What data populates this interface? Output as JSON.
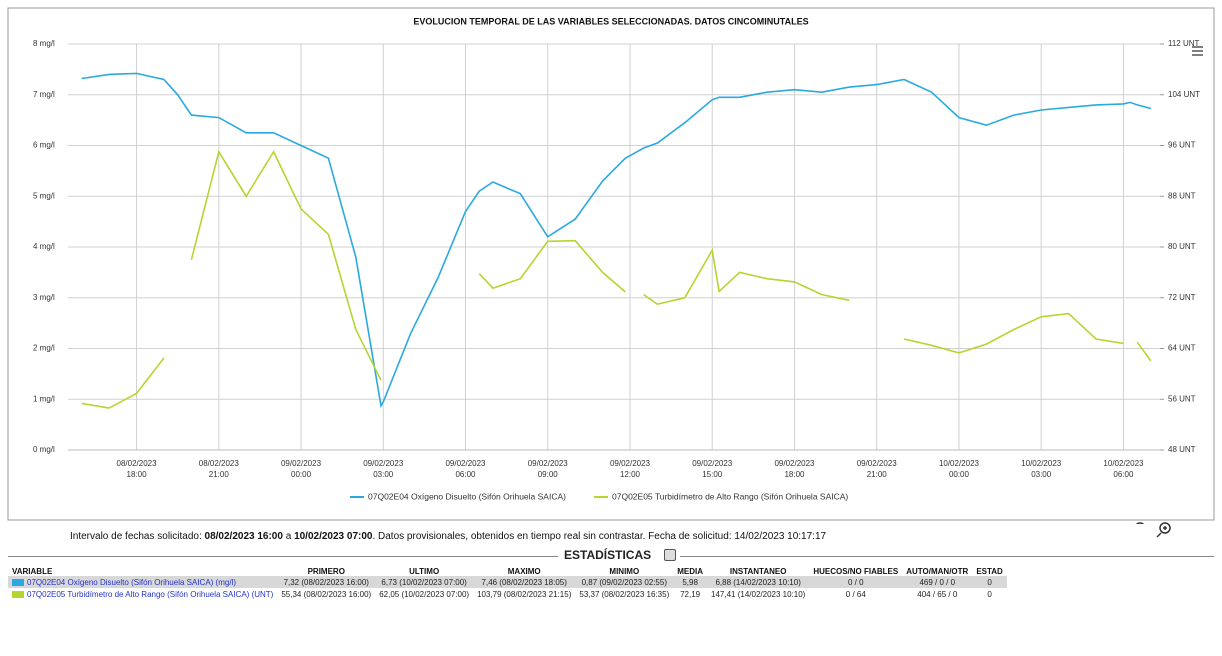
{
  "chart_data": {
    "type": "line",
    "title": "EVOLUCION TEMPORAL DE LAS VARIABLES SELECCIONADAS. DATOS CINCOMINUTALES",
    "x": [
      "08/02/2023 16:00",
      "08/02/2023 17:00",
      "08/02/2023 18:00",
      "08/02/2023 19:00",
      "08/02/2023 19:30",
      "08/02/2023 20:00",
      "08/02/2023 21:00",
      "08/02/2023 22:00",
      "08/02/2023 23:00",
      "09/02/2023 00:00",
      "09/02/2023 01:00",
      "09/02/2023 02:00",
      "09/02/2023 02:55",
      "09/02/2023 03:00",
      "09/02/2023 04:00",
      "09/02/2023 05:00",
      "09/02/2023 06:00",
      "09/02/2023 06:30",
      "09/02/2023 07:00",
      "09/02/2023 08:00",
      "09/02/2023 09:00",
      "09/02/2023 10:00",
      "09/02/2023 11:00",
      "09/02/2023 11:50",
      "09/02/2023 12:00",
      "09/02/2023 12:30",
      "09/02/2023 13:00",
      "09/02/2023 14:00",
      "09/02/2023 15:00",
      "09/02/2023 15:15",
      "09/02/2023 16:00",
      "09/02/2023 17:00",
      "09/02/2023 18:00",
      "09/02/2023 19:00",
      "09/02/2023 20:00",
      "09/02/2023 21:00",
      "09/02/2023 22:00",
      "09/02/2023 23:00",
      "10/02/2023 00:00",
      "10/02/2023 01:00",
      "10/02/2023 02:00",
      "10/02/2023 03:00",
      "10/02/2023 04:00",
      "10/02/2023 05:00",
      "10/02/2023 06:00",
      "10/02/2023 06:15",
      "10/02/2023 06:30",
      "10/02/2023 07:00"
    ],
    "series": [
      {
        "name": "07Q02E04 Oxígeno Disuelto (Sifón Orihuela SAICA)",
        "color": "#2aa9e0",
        "values": [
          7.32,
          7.4,
          7.42,
          7.3,
          7.0,
          6.6,
          6.55,
          6.25,
          6.25,
          6.0,
          5.75,
          3.8,
          0.87,
          0.95,
          2.3,
          3.4,
          4.7,
          5.1,
          5.28,
          5.05,
          4.2,
          4.55,
          5.3,
          5.75,
          5.8,
          5.95,
          6.05,
          6.45,
          6.9,
          6.95,
          6.95,
          7.05,
          7.1,
          7.05,
          7.15,
          7.2,
          7.3,
          7.05,
          6.55,
          6.4,
          6.6,
          6.7,
          6.75,
          6.8,
          6.82,
          6.85,
          6.8,
          6.73
        ]
      },
      {
        "name": "07Q02E05 Turbidímetro de Alto Rango (Sifón Orihuela SAICA)",
        "color": "#b5d52f",
        "axis": "y2",
        "values": [
          55.34,
          54.6,
          56.9,
          62.5,
          null,
          78,
          95,
          88,
          95,
          86,
          82,
          67,
          59,
          null,
          null,
          null,
          null,
          75.8,
          73.5,
          75,
          80.9,
          81,
          76,
          72.9,
          null,
          72.5,
          71,
          72,
          79.5,
          73,
          76,
          75,
          74.5,
          72.5,
          71.6,
          null,
          65.5,
          64.5,
          63.3,
          64.7,
          67,
          69,
          69.5,
          65.5,
          64.8,
          null,
          65,
          62.05
        ]
      }
    ],
    "xlim": [
      "08/02/2023 15:30",
      "10/02/2023 07:20"
    ],
    "xticks": [
      "08/02/2023 18:00",
      "08/02/2023 21:00",
      "09/02/2023 00:00",
      "09/02/2023 03:00",
      "09/02/2023 06:00",
      "09/02/2023 09:00",
      "09/02/2023 12:00",
      "09/02/2023 15:00",
      "09/02/2023 18:00",
      "09/02/2023 21:00",
      "10/02/2023 00:00",
      "10/02/2023 03:00",
      "10/02/2023 06:00"
    ],
    "ylim": [
      0,
      8
    ],
    "yticks": [
      {
        "value": 0,
        "label": "0 mg/l"
      },
      {
        "value": 1,
        "label": "1 mg/l"
      },
      {
        "value": 2,
        "label": "2 mg/l"
      },
      {
        "value": 3,
        "label": "3 mg/l"
      },
      {
        "value": 4,
        "label": "4 mg/l"
      },
      {
        "value": 5,
        "label": "5 mg/l"
      },
      {
        "value": 6,
        "label": "6 mg/l"
      },
      {
        "value": 7,
        "label": "7 mg/l"
      },
      {
        "value": 8,
        "label": "8 mg/l"
      }
    ],
    "y2lim": [
      48,
      112
    ],
    "y2ticks": [
      {
        "value": 48,
        "label": "48 UNT"
      },
      {
        "value": 56,
        "label": "56 UNT"
      },
      {
        "value": 64,
        "label": "64 UNT"
      },
      {
        "value": 72,
        "label": "72 UNT"
      },
      {
        "value": 80,
        "label": "80 UNT"
      },
      {
        "value": 88,
        "label": "88 UNT"
      },
      {
        "value": 96,
        "label": "96 UNT"
      },
      {
        "value": 104,
        "label": "104 UNT"
      },
      {
        "value": 112,
        "label": "112 UNT"
      }
    ],
    "grid": true,
    "legend": "bottom"
  },
  "info": {
    "prefix": "Intervalo de fechas solicitado:",
    "from": "08/02/2023 16:00",
    "middle": "a",
    "to": "10/02/2023 07:00",
    "suffix": ". Datos provisionales, obtenidos en tiempo real sin contrastar. Fecha de solicitud: 14/02/2023 10:17:17"
  },
  "stats": {
    "title": "ESTADÍSTICAS",
    "headers": [
      "VARIABLE",
      "PRIMERO",
      "ULTIMO",
      "MAXIMO",
      "MINIMO",
      "MEDIA",
      "INSTANTANEO",
      "HUECOS/NO FIABLES",
      "AUTO/MAN/OTR",
      "ESTAD"
    ],
    "rows": [
      [
        "07Q02E04 Oxígeno Disuelto (Sifón Orihuela SAICA) (mg/l)",
        "7,32 (08/02/2023 16:00)",
        "6,73 (10/02/2023 07:00)",
        "7,46 (08/02/2023 18:05)",
        "0,87 (09/02/2023 02:55)",
        "5,98",
        "6,88 (14/02/2023 10:10)",
        "0 / 0",
        "469 / 0 / 0",
        "0"
      ],
      [
        "07Q02E05 Turbidímetro de Alto Rango (Sifón Orihuela SAICA) (UNT)",
        "55,34 (08/02/2023 16:00)",
        "62,05 (10/02/2023 07:00)",
        "103,79 (08/02/2023 21:15)",
        "53,37 (08/02/2023 16:35)",
        "72,19",
        "147,41 (14/02/2023 10:10)",
        "0 / 64",
        "404 / 65 / 0",
        "0"
      ]
    ]
  }
}
